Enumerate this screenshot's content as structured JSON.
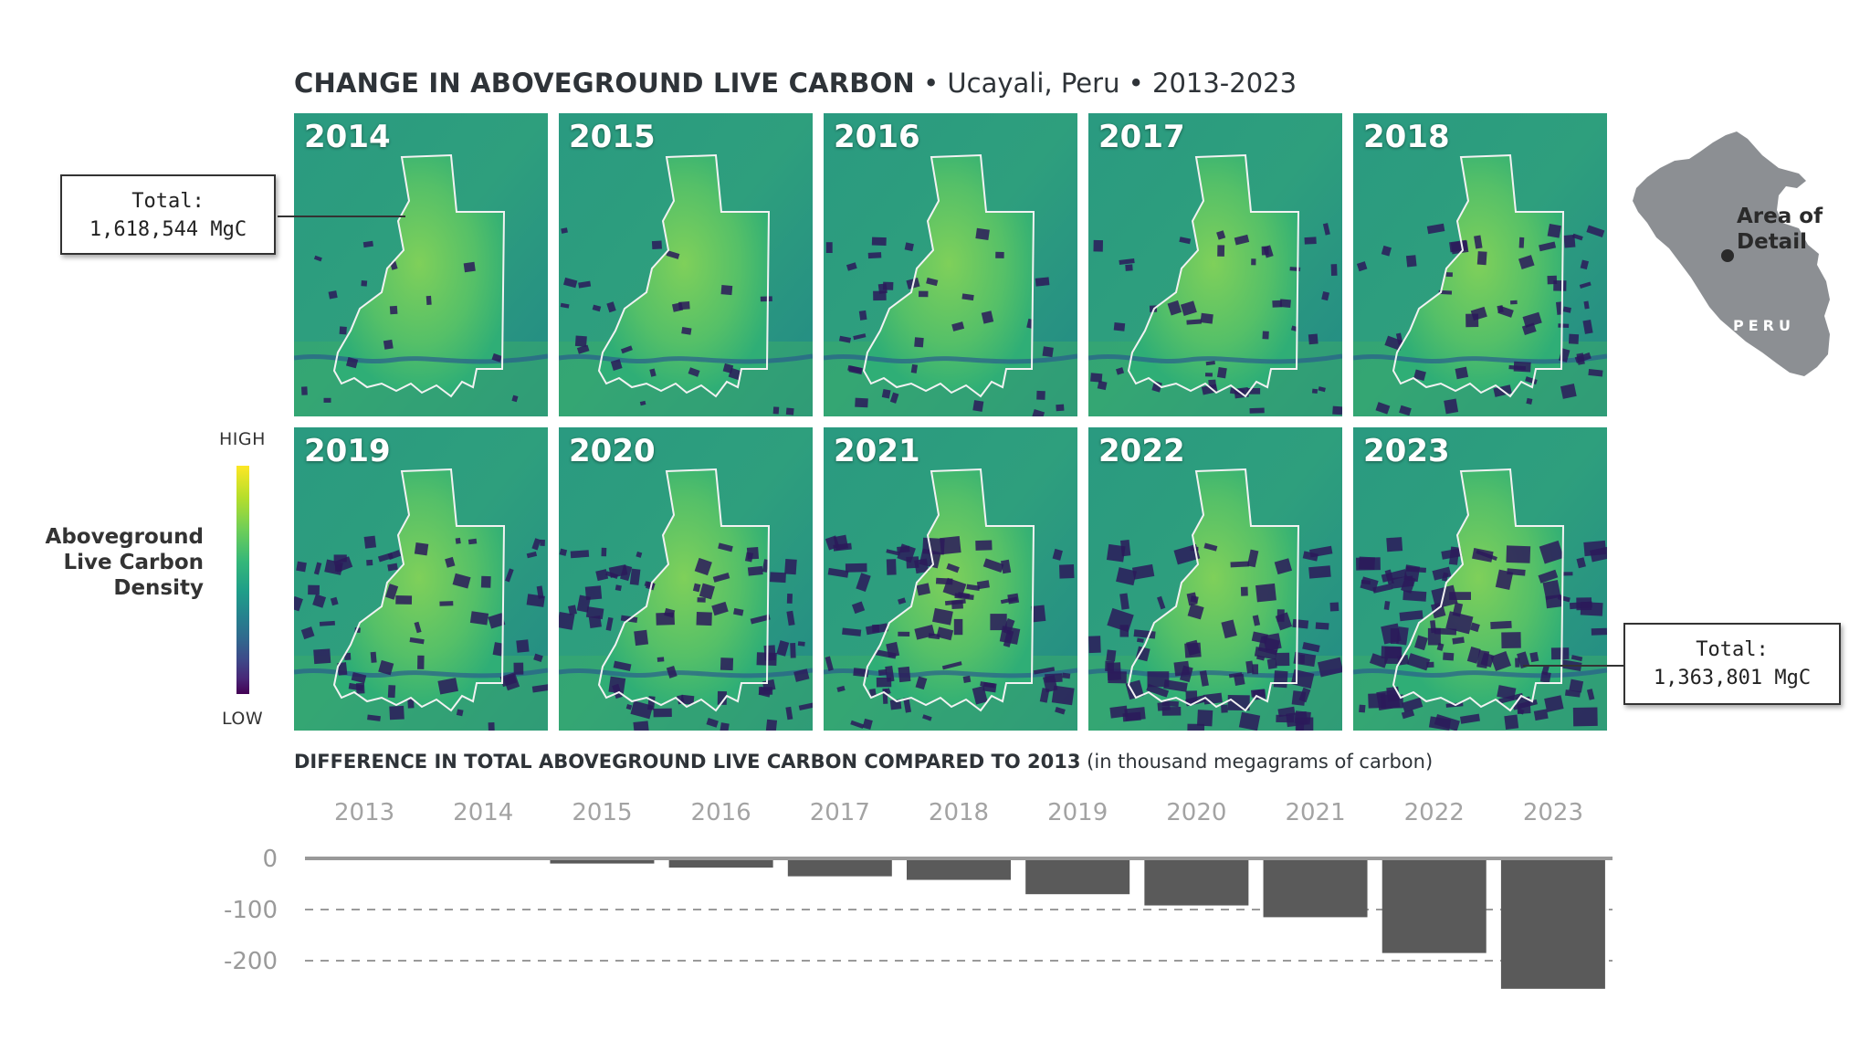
{
  "header": {
    "title_main": "CHANGE IN ABOVEGROUND LIVE CARBON",
    "title_rest": " • Ucayali, Peru • 2013-2023"
  },
  "panels": [
    {
      "year": "2014",
      "loss": 1
    },
    {
      "year": "2015",
      "loss": 2
    },
    {
      "year": "2016",
      "loss": 3
    },
    {
      "year": "2017",
      "loss": 4
    },
    {
      "year": "2018",
      "loss": 5
    },
    {
      "year": "2019",
      "loss": 6
    },
    {
      "year": "2020",
      "loss": 7
    },
    {
      "year": "2021",
      "loss": 8
    },
    {
      "year": "2022",
      "loss": 9
    },
    {
      "year": "2023",
      "loss": 10
    }
  ],
  "callouts": {
    "start": {
      "label": "Total:",
      "value": "1,618,544 MgC"
    },
    "end": {
      "label": "Total:",
      "value": "1,363,801 MgC"
    }
  },
  "legend": {
    "high": "HIGH",
    "low": "LOW",
    "title_lines": [
      "Aboveground",
      "Live Carbon",
      "Density"
    ]
  },
  "inset": {
    "label_lines": [
      "Area of",
      "Detail"
    ],
    "country": "PERU"
  },
  "colors": {
    "bar": "#5a5a5a",
    "axis": "#999999",
    "text_dark": "#2e3338"
  },
  "chart_data": {
    "type": "bar",
    "title": "DIFFERENCE IN TOTAL ABOVEGROUND LIVE CARBON COMPARED TO 2013",
    "subtitle": "(in thousand megagrams of carbon)",
    "categories": [
      "2013",
      "2014",
      "2015",
      "2016",
      "2017",
      "2018",
      "2019",
      "2020",
      "2021",
      "2022",
      "2023"
    ],
    "values": [
      0,
      -3,
      -10,
      -18,
      -35,
      -42,
      -70,
      -92,
      -115,
      -185,
      -255
    ],
    "ylim": [
      -260,
      0
    ],
    "yticks": [
      0,
      -100,
      -200
    ],
    "ytick_labels": [
      "0",
      "-100",
      "-200"
    ],
    "grid": "dashed at -100 and -200",
    "xaxis_position": "top"
  }
}
